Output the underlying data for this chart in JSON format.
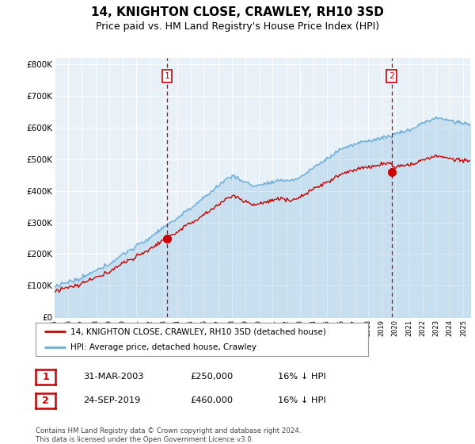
{
  "title": "14, KNIGHTON CLOSE, CRAWLEY, RH10 3SD",
  "subtitle": "Price paid vs. HM Land Registry's House Price Index (HPI)",
  "ylim": [
    0,
    820000
  ],
  "yticks": [
    0,
    100000,
    200000,
    300000,
    400000,
    500000,
    600000,
    700000,
    800000
  ],
  "ytick_labels": [
    "£0",
    "£100K",
    "£200K",
    "£300K",
    "£400K",
    "£500K",
    "£600K",
    "£700K",
    "£800K"
  ],
  "sale1_date": 2003.25,
  "sale1_price": 250000,
  "sale2_date": 2019.73,
  "sale2_price": 460000,
  "hpi_color": "#6baed6",
  "hpi_fill_color": "#deebf7",
  "price_color": "#cc0000",
  "vline_color": "#cc0000",
  "bg_color": "#e8f0f8",
  "legend_label_price": "14, KNIGHTON CLOSE, CRAWLEY, RH10 3SD (detached house)",
  "legend_label_hpi": "HPI: Average price, detached house, Crawley",
  "table_row1": [
    "1",
    "31-MAR-2003",
    "£250,000",
    "16% ↓ HPI"
  ],
  "table_row2": [
    "2",
    "24-SEP-2019",
    "£460,000",
    "16% ↓ HPI"
  ],
  "footnote": "Contains HM Land Registry data © Crown copyright and database right 2024.\nThis data is licensed under the Open Government Licence v3.0.",
  "title_fontsize": 11,
  "subtitle_fontsize": 9
}
